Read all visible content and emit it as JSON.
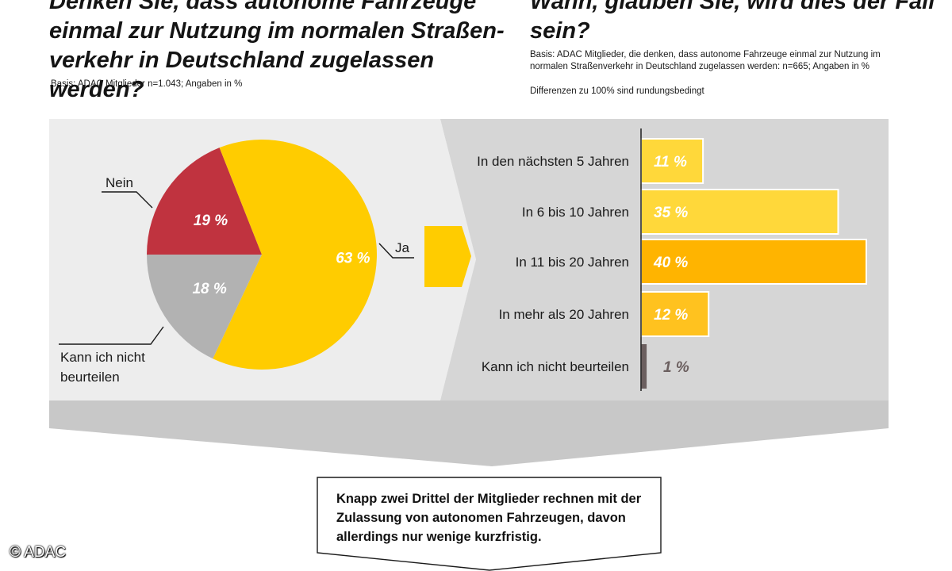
{
  "left_question": {
    "title": "Denken Sie, dass autonome Fahrzeuge einmal zur Nutzung im normalen Straßen­verkehr in Deutschland zugelassen werden?",
    "basis": "Basis: ADAC Mitglieder n=1.043; Angaben in %"
  },
  "right_question": {
    "title": "Wann, glauben Sie, wird dies der Fall sein?",
    "basis": "Basis: ADAC Mitglieder, die denken, dass autonome Fahrzeuge einmal zur Nutzung im normalen Straßenverkehr in Deutschland zugelassen werden: n=665; Angaben in %",
    "note": "Differenzen zu 100% sind rundungsbedingt"
  },
  "colors": {
    "panel_bg": "#ededed",
    "panel_bg_dark": "#d6d6d6",
    "bottom_band": "#c8c8c8",
    "ja": "#ffcc00",
    "nein": "#c0333f",
    "kann_nicht": "#b2b2b2",
    "bar_light": "#ffd83a",
    "bar_medium": "#ffc21f",
    "bar_dark": "#ffb400",
    "bar_gray": "#6b5f5f",
    "arrow": "#ffcc00"
  },
  "chart_data": [
    {
      "type": "pie",
      "categories": [
        "Ja",
        "Nein",
        "Kann ich nicht beurteilen"
      ],
      "labels": [
        "Ja",
        "Nein",
        "Kann ich nicht\nbeurteilen"
      ],
      "values": [
        63,
        19,
        18
      ],
      "value_labels": [
        "63 %",
        "19 %",
        "18 %"
      ]
    },
    {
      "type": "bar",
      "orientation": "horizontal",
      "categories": [
        "In den nächsten 5 Jahren",
        "In 6 bis 10 Jahren",
        "In 11 bis 20 Jahren",
        "In mehr als 20 Jahren",
        "Kann ich nicht beurteilen"
      ],
      "values": [
        11,
        35,
        40,
        12,
        1
      ],
      "value_labels": [
        "11 %",
        "35 %",
        "40 %",
        "12 %",
        "1 %"
      ],
      "xlim": [
        0,
        40
      ]
    }
  ],
  "conclusion": "Knapp zwei Drittel der Mitglieder rechnen mit der Zulassung von autonomen Fahrzeu­gen, davon allerdings nur wenige kurzfristig.",
  "copyright": "© ADAC"
}
